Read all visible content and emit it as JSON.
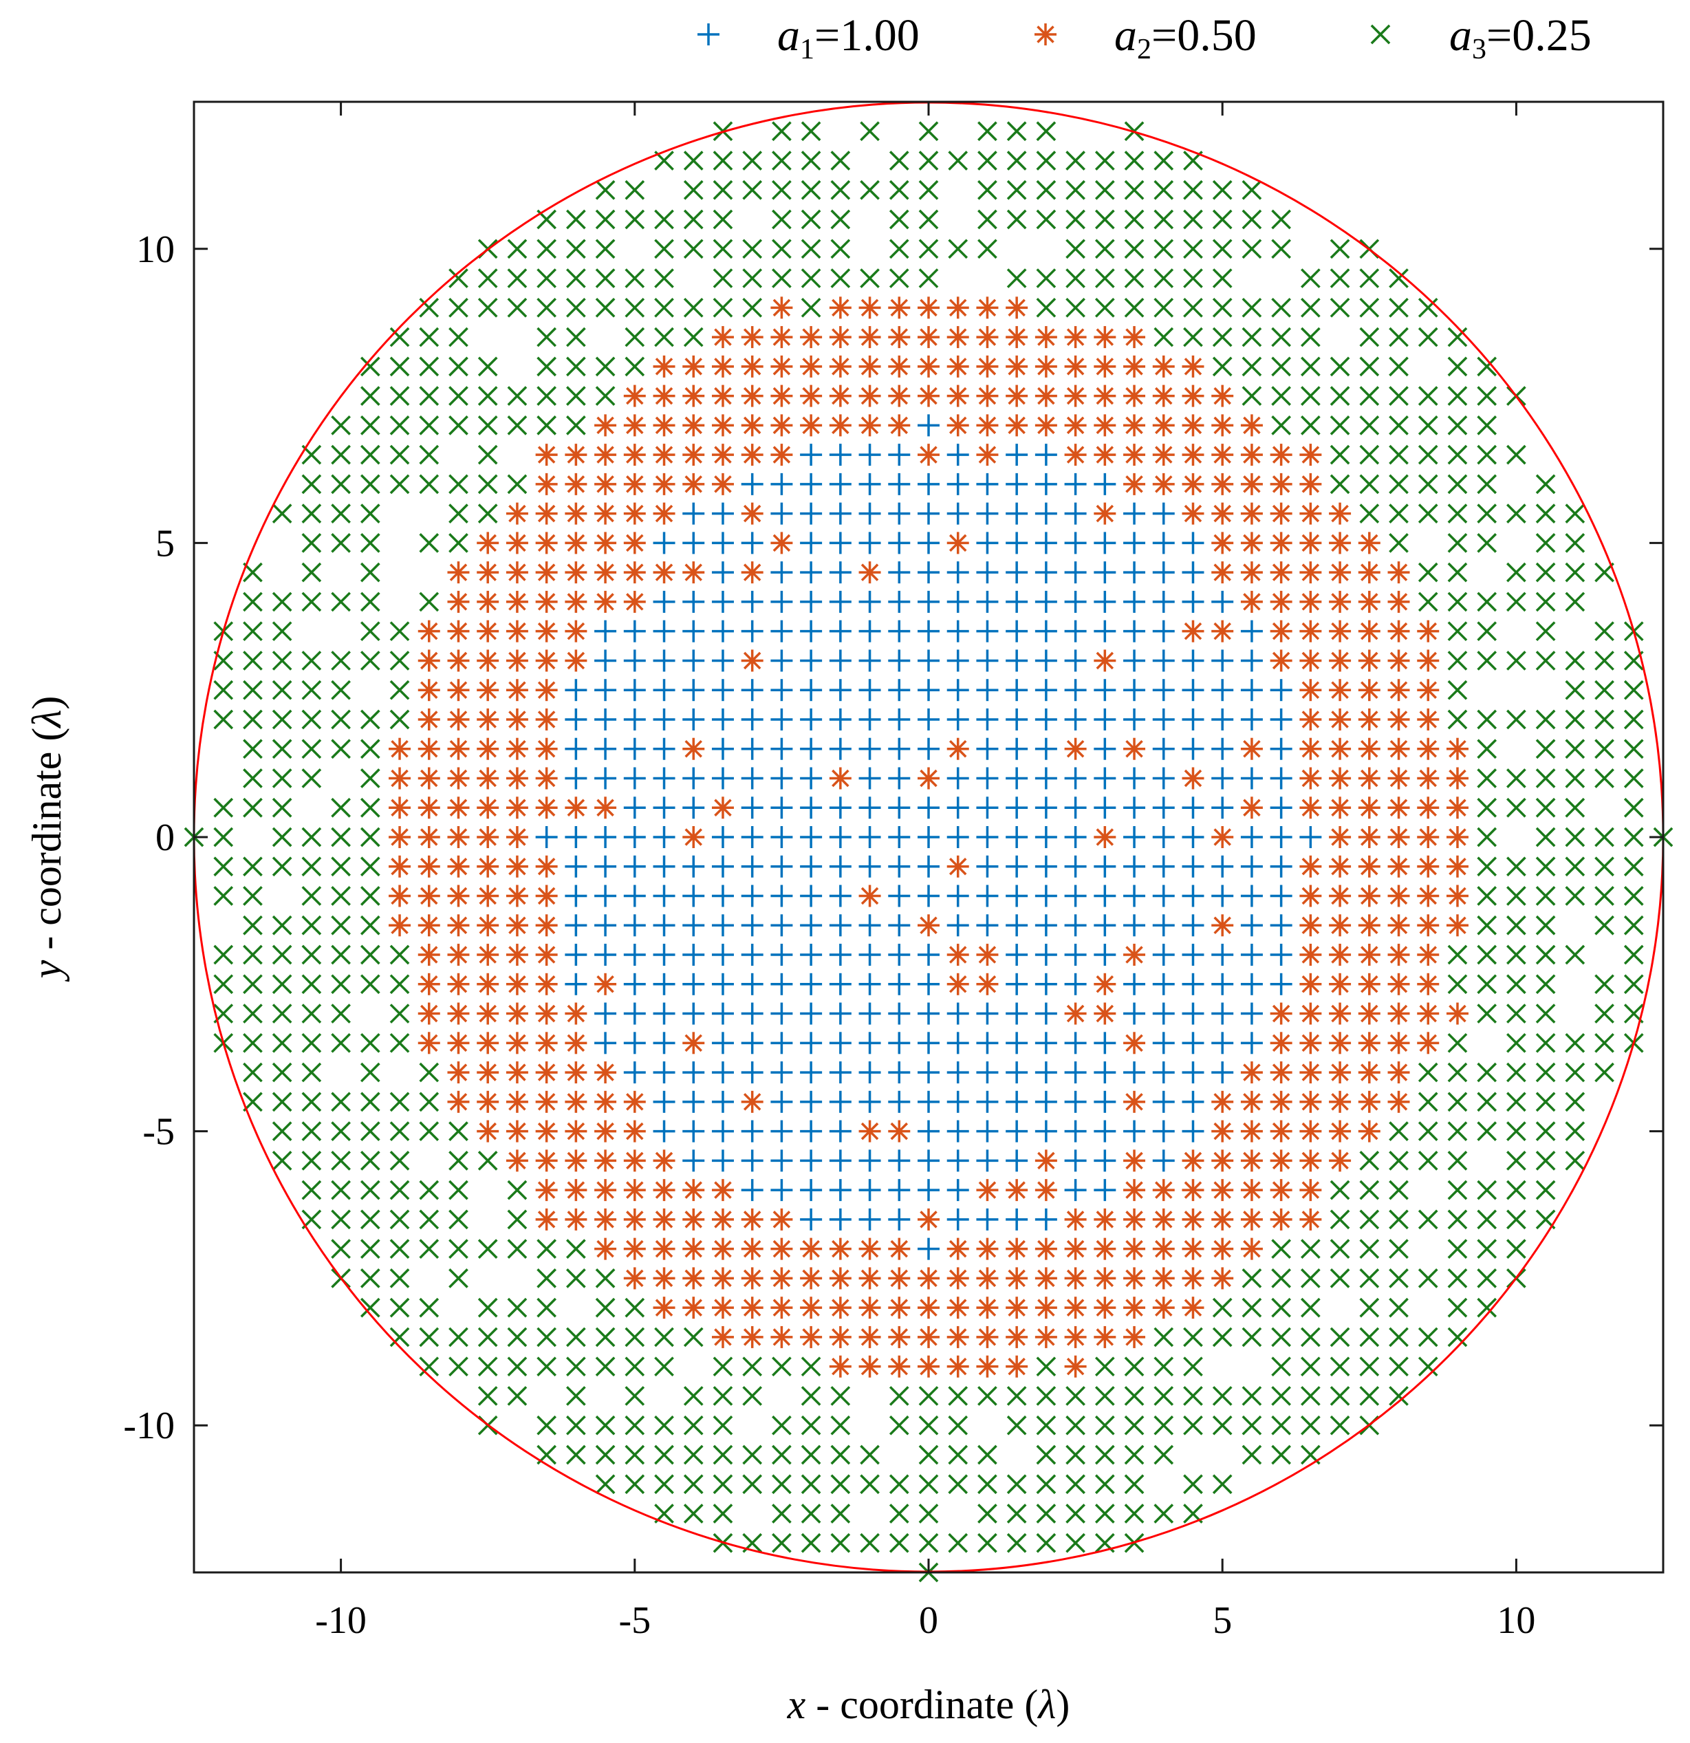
{
  "chart_data": {
    "type": "scatter",
    "title": "",
    "xlabel": "x - coordinate (λ)",
    "ylabel": "y - coordinate (λ)",
    "xlabel_parts": {
      "var": "x",
      "rest": " - coordinate (",
      "unit": "λ",
      "close": ")"
    },
    "ylabel_parts": {
      "var": "y",
      "rest": " - coordinate (",
      "unit": "λ",
      "close": ")"
    },
    "xlim": [
      -12.5,
      12.5
    ],
    "ylim": [
      -12.5,
      12.5
    ],
    "xticks": [
      -10,
      -5,
      0,
      5,
      10
    ],
    "yticks": [
      -10,
      -5,
      0,
      5,
      10
    ],
    "xtick_labels": [
      "-10",
      "-5",
      "0",
      "5",
      "10"
    ],
    "ytick_labels": [
      "-10",
      "-5",
      "0",
      "5",
      "10"
    ],
    "grid": false,
    "legend_position": "top, outside plot area",
    "grid_step": 0.5,
    "aperture": {
      "shape": "circle",
      "center": [
        0,
        0
      ],
      "radius": 12.5,
      "color": "#ff0000"
    },
    "series": [
      {
        "name": "a1=1.00",
        "symbol": "a",
        "subscript": "1",
        "value_text": "=1.00",
        "amplitude": 1.0,
        "marker": "plus",
        "color": "#0072bd",
        "region": "central elliptical zone, semi-axes about 6.5 (x) by 7.0 (y)"
      },
      {
        "name": "a2=0.50",
        "symbol": "a",
        "subscript": "2",
        "value_text": "=0.50",
        "amplitude": 0.5,
        "marker": "asterisk",
        "color": "#d95319",
        "region": "annular zone around the central zone, outer extent about 9 to 9.5"
      },
      {
        "name": "a3=0.25",
        "symbol": "a",
        "subscript": "3",
        "value_text": "=0.25",
        "amplitude": 0.25,
        "marker": "x",
        "color": "#1a7a1a",
        "region": "outer zone up to the aperture radius 12.5"
      }
    ]
  }
}
